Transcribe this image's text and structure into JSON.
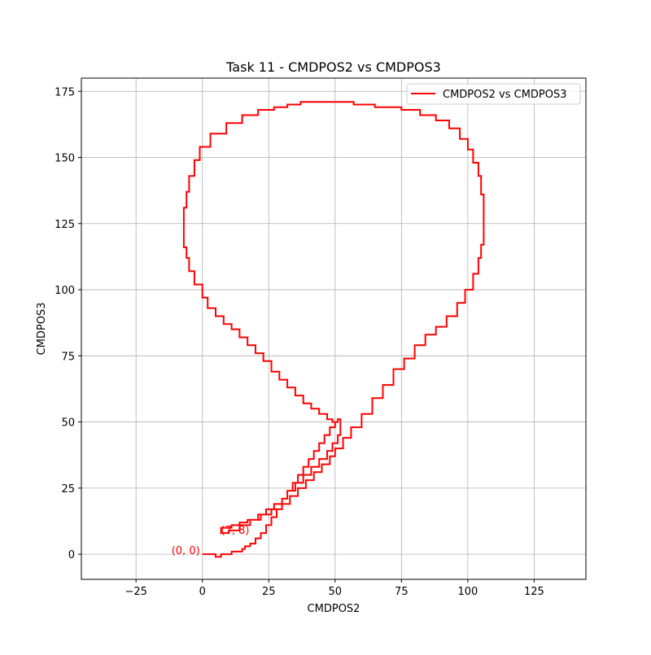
{
  "chart_data": {
    "type": "line",
    "title": "Task 11 - CMDPOS2 vs CMDPOS3",
    "xlabel": "CMDPOS2",
    "ylabel": "CMDPOS3",
    "xlim": [
      -45.6,
      144.5
    ],
    "ylim": [
      -9.5,
      180.0
    ],
    "x_ticks": [
      -25,
      0,
      25,
      50,
      75,
      100,
      125
    ],
    "y_ticks": [
      0,
      25,
      50,
      75,
      100,
      125,
      150,
      175
    ],
    "x_tick_labels": [
      "−25",
      "0",
      "25",
      "50",
      "75",
      "100",
      "125"
    ],
    "y_tick_labels": [
      "0",
      "25",
      "50",
      "75",
      "100",
      "125",
      "150",
      "175"
    ],
    "grid": true,
    "legend_position": "top-right",
    "series": [
      {
        "name": "CMDPOS2 vs CMDPOS3",
        "color": "#ff0000",
        "x": [
          0,
          2,
          4,
          5,
          5,
          7,
          7,
          10,
          11,
          11,
          13,
          15,
          16,
          18,
          20,
          22,
          24,
          26,
          28,
          30,
          32,
          34,
          36,
          38,
          40,
          42,
          44,
          46,
          48,
          50,
          51,
          52,
          52,
          51,
          49,
          47,
          44,
          41,
          38,
          35,
          32,
          30,
          27,
          24,
          21,
          17,
          14,
          11,
          7,
          7,
          10,
          14,
          18,
          22,
          26,
          30,
          33,
          36,
          39,
          42,
          45,
          48,
          50,
          53,
          56,
          60,
          64,
          68,
          72,
          76,
          80,
          84,
          88,
          92,
          96,
          99,
          102,
          104,
          105,
          106,
          106,
          106,
          105,
          104,
          102,
          100,
          97,
          93,
          88,
          82,
          75,
          65,
          57,
          45,
          37,
          32,
          27,
          21,
          15,
          9,
          3,
          -1,
          -3,
          -5,
          -6,
          -7,
          -7,
          -7,
          -6,
          -5,
          -3,
          0,
          2,
          5,
          8,
          11,
          14,
          17,
          20,
          23,
          26,
          29,
          32,
          35,
          38,
          41,
          44,
          47,
          49,
          50
        ],
        "y": [
          0,
          0,
          0,
          -1,
          -1,
          -1,
          0,
          0,
          0,
          1,
          1,
          2,
          3,
          4,
          6,
          8,
          11,
          14,
          17,
          21,
          24,
          27,
          30,
          33,
          36,
          39,
          42,
          45,
          48,
          50,
          51,
          48,
          45,
          42,
          39,
          36,
          33,
          30,
          27,
          24,
          21,
          19,
          17,
          15,
          13,
          12,
          11,
          10,
          8,
          8,
          9,
          11,
          13,
          15,
          17,
          19,
          22,
          25,
          28,
          31,
          34,
          37,
          40,
          44,
          48,
          53,
          59,
          64,
          70,
          74,
          79,
          83,
          86,
          90,
          95,
          100,
          106,
          112,
          117,
          121,
          125,
          136,
          143,
          148,
          153,
          157,
          161,
          164,
          166,
          168,
          169,
          170,
          171,
          171,
          170,
          169,
          168,
          166,
          163,
          159,
          154,
          149,
          143,
          137,
          131,
          125,
          120,
          116,
          112,
          107,
          102,
          97,
          93,
          90,
          87,
          85,
          82,
          79,
          76,
          73,
          69,
          66,
          63,
          60,
          57,
          55,
          53,
          51,
          50,
          50
        ]
      }
    ],
    "annotations": [
      {
        "text": "(0, 0)",
        "x": 0,
        "y": 0,
        "color": "#ff0000"
      },
      {
        "text": "(7, 8)",
        "x": 7,
        "y": 8,
        "color": "#ff0000"
      }
    ]
  }
}
